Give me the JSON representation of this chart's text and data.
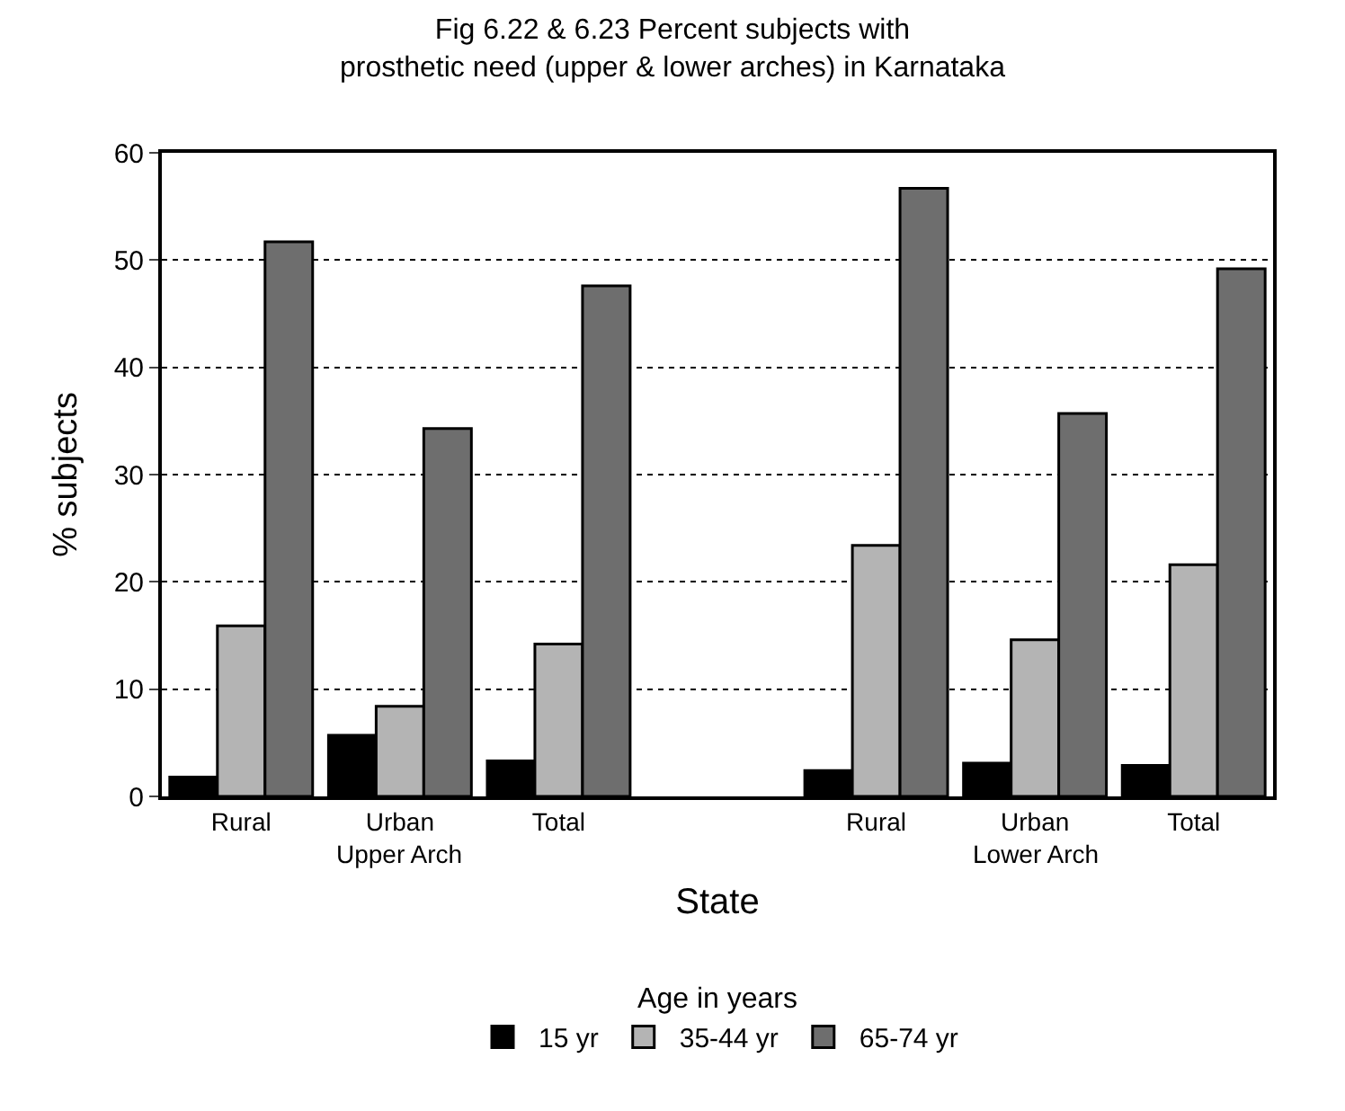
{
  "chart_data": {
    "type": "bar",
    "title": "Fig 6.22 & 6.23 Percent subjects with\nprosthetic need (upper & lower arches) in Karnataka",
    "categories": [
      "Rural",
      "Urban",
      "Total",
      null,
      "Rural",
      "Urban",
      "Total"
    ],
    "series": [
      {
        "name": "15 yr",
        "color": "#000000",
        "values": [
          1.8,
          5.7,
          3.3,
          null,
          2.4,
          3.1,
          2.9
        ]
      },
      {
        "name": "35-44 yr",
        "color": "#b4b4b4",
        "values": [
          15.9,
          8.4,
          14.2,
          null,
          23.4,
          14.6,
          21.6
        ]
      },
      {
        "name": "65-74 yr",
        "color": "#6e6e6e",
        "values": [
          51.7,
          34.3,
          47.6,
          null,
          56.7,
          35.7,
          49.2
        ]
      }
    ],
    "xlabel": "State",
    "ylabel": "% subjects",
    "legend_title": "Age in years",
    "annotations": [
      "Upper Arch",
      "Lower Arch"
    ],
    "ylim": [
      0,
      60
    ],
    "yticks": [
      0,
      10,
      20,
      30,
      40,
      50,
      60
    ],
    "grid": "y",
    "legend": "bottom"
  }
}
